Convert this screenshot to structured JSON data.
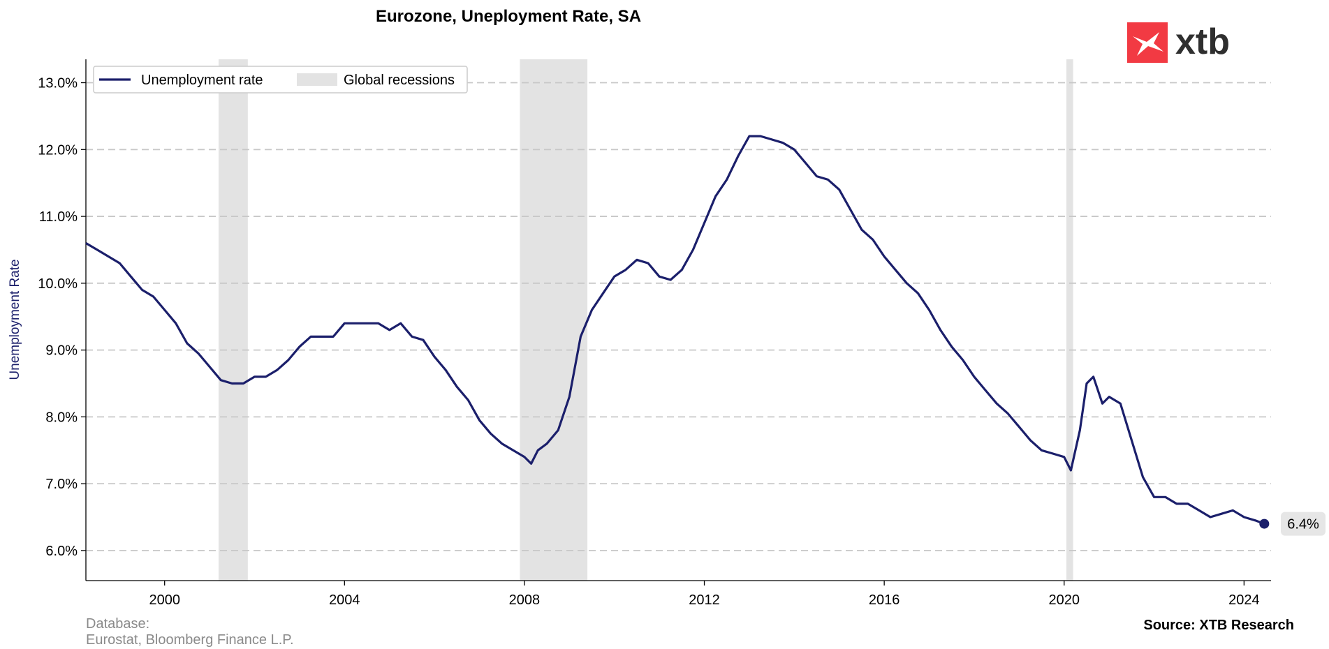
{
  "chart_data": {
    "type": "line",
    "title": "Eurozone, Uneployment Rate, SA",
    "ylabel": "Unemployment Rate",
    "xlabel": "",
    "x_range": [
      1998.25,
      2024.6
    ],
    "ylim": [
      5.55,
      13.35
    ],
    "y_ticks": [
      {
        "value": 6.0,
        "label": "6.0%"
      },
      {
        "value": 7.0,
        "label": "7.0%"
      },
      {
        "value": 8.0,
        "label": "8.0%"
      },
      {
        "value": 9.0,
        "label": "9.0%"
      },
      {
        "value": 10.0,
        "label": "10.0%"
      },
      {
        "value": 11.0,
        "label": "11.0%"
      },
      {
        "value": 12.0,
        "label": "12.0%"
      },
      {
        "value": 13.0,
        "label": "13.0%"
      }
    ],
    "x_ticks": [
      {
        "value": 2000,
        "label": "2000"
      },
      {
        "value": 2004,
        "label": "2004"
      },
      {
        "value": 2008,
        "label": "2008"
      },
      {
        "value": 2012,
        "label": "2012"
      },
      {
        "value": 2016,
        "label": "2016"
      },
      {
        "value": 2020,
        "label": "2020"
      },
      {
        "value": 2024,
        "label": "2024"
      }
    ],
    "grid": "horizontal dashed",
    "legend_position": "top-left",
    "series": [
      {
        "name": "Unemployment rate",
        "color": "#1b1f6b",
        "points": [
          [
            1998.25,
            10.6
          ],
          [
            1998.5,
            10.5
          ],
          [
            1998.75,
            10.4
          ],
          [
            1999.0,
            10.3
          ],
          [
            1999.25,
            10.1
          ],
          [
            1999.5,
            9.9
          ],
          [
            1999.75,
            9.8
          ],
          [
            2000.0,
            9.6
          ],
          [
            2000.25,
            9.4
          ],
          [
            2000.5,
            9.1
          ],
          [
            2000.75,
            8.95
          ],
          [
            2001.0,
            8.75
          ],
          [
            2001.25,
            8.55
          ],
          [
            2001.5,
            8.5
          ],
          [
            2001.75,
            8.5
          ],
          [
            2002.0,
            8.6
          ],
          [
            2002.25,
            8.6
          ],
          [
            2002.5,
            8.7
          ],
          [
            2002.75,
            8.85
          ],
          [
            2003.0,
            9.05
          ],
          [
            2003.25,
            9.2
          ],
          [
            2003.5,
            9.2
          ],
          [
            2003.75,
            9.2
          ],
          [
            2004.0,
            9.4
          ],
          [
            2004.25,
            9.4
          ],
          [
            2004.5,
            9.4
          ],
          [
            2004.75,
            9.4
          ],
          [
            2005.0,
            9.3
          ],
          [
            2005.25,
            9.4
          ],
          [
            2005.5,
            9.2
          ],
          [
            2005.75,
            9.15
          ],
          [
            2006.0,
            8.9
          ],
          [
            2006.25,
            8.7
          ],
          [
            2006.5,
            8.45
          ],
          [
            2006.75,
            8.25
          ],
          [
            2007.0,
            7.95
          ],
          [
            2007.25,
            7.75
          ],
          [
            2007.5,
            7.6
          ],
          [
            2007.75,
            7.5
          ],
          [
            2008.0,
            7.4
          ],
          [
            2008.15,
            7.3
          ],
          [
            2008.3,
            7.5
          ],
          [
            2008.5,
            7.6
          ],
          [
            2008.75,
            7.8
          ],
          [
            2009.0,
            8.3
          ],
          [
            2009.25,
            9.2
          ],
          [
            2009.5,
            9.6
          ],
          [
            2009.75,
            9.85
          ],
          [
            2010.0,
            10.1
          ],
          [
            2010.25,
            10.2
          ],
          [
            2010.5,
            10.35
          ],
          [
            2010.75,
            10.3
          ],
          [
            2011.0,
            10.1
          ],
          [
            2011.25,
            10.05
          ],
          [
            2011.5,
            10.2
          ],
          [
            2011.75,
            10.5
          ],
          [
            2012.0,
            10.9
          ],
          [
            2012.25,
            11.3
          ],
          [
            2012.5,
            11.55
          ],
          [
            2012.75,
            11.9
          ],
          [
            2013.0,
            12.2
          ],
          [
            2013.25,
            12.2
          ],
          [
            2013.5,
            12.15
          ],
          [
            2013.75,
            12.1
          ],
          [
            2014.0,
            12.0
          ],
          [
            2014.25,
            11.8
          ],
          [
            2014.5,
            11.6
          ],
          [
            2014.75,
            11.55
          ],
          [
            2015.0,
            11.4
          ],
          [
            2015.25,
            11.1
          ],
          [
            2015.5,
            10.8
          ],
          [
            2015.75,
            10.65
          ],
          [
            2016.0,
            10.4
          ],
          [
            2016.25,
            10.2
          ],
          [
            2016.5,
            10.0
          ],
          [
            2016.75,
            9.85
          ],
          [
            2017.0,
            9.6
          ],
          [
            2017.25,
            9.3
          ],
          [
            2017.5,
            9.05
          ],
          [
            2017.75,
            8.85
          ],
          [
            2018.0,
            8.6
          ],
          [
            2018.25,
            8.4
          ],
          [
            2018.5,
            8.2
          ],
          [
            2018.75,
            8.05
          ],
          [
            2019.0,
            7.85
          ],
          [
            2019.25,
            7.65
          ],
          [
            2019.5,
            7.5
          ],
          [
            2019.75,
            7.45
          ],
          [
            2020.0,
            7.4
          ],
          [
            2020.15,
            7.2
          ],
          [
            2020.35,
            7.8
          ],
          [
            2020.5,
            8.5
          ],
          [
            2020.65,
            8.6
          ],
          [
            2020.85,
            8.2
          ],
          [
            2021.0,
            8.3
          ],
          [
            2021.25,
            8.2
          ],
          [
            2021.5,
            7.65
          ],
          [
            2021.75,
            7.1
          ],
          [
            2022.0,
            6.8
          ],
          [
            2022.25,
            6.8
          ],
          [
            2022.5,
            6.7
          ],
          [
            2022.75,
            6.7
          ],
          [
            2023.0,
            6.6
          ],
          [
            2023.25,
            6.5
          ],
          [
            2023.5,
            6.55
          ],
          [
            2023.75,
            6.6
          ],
          [
            2024.0,
            6.5
          ],
          [
            2024.25,
            6.45
          ],
          [
            2024.45,
            6.4
          ]
        ],
        "last_value_label": "6.4%"
      }
    ],
    "recessions": {
      "name": "Global recessions",
      "color": "#e3e3e3",
      "periods": [
        [
          2001.2,
          2001.85
        ],
        [
          2007.9,
          2009.4
        ],
        [
          2020.05,
          2020.2
        ]
      ]
    }
  },
  "footer": {
    "database_label": "Database:",
    "database_sources": "Eurostat, Bloomberg Finance L.P.",
    "source": "Source: XTB Research"
  },
  "logo": {
    "text": "xtb",
    "icon": "xtb-logo-icon",
    "color": "#f23a43"
  }
}
